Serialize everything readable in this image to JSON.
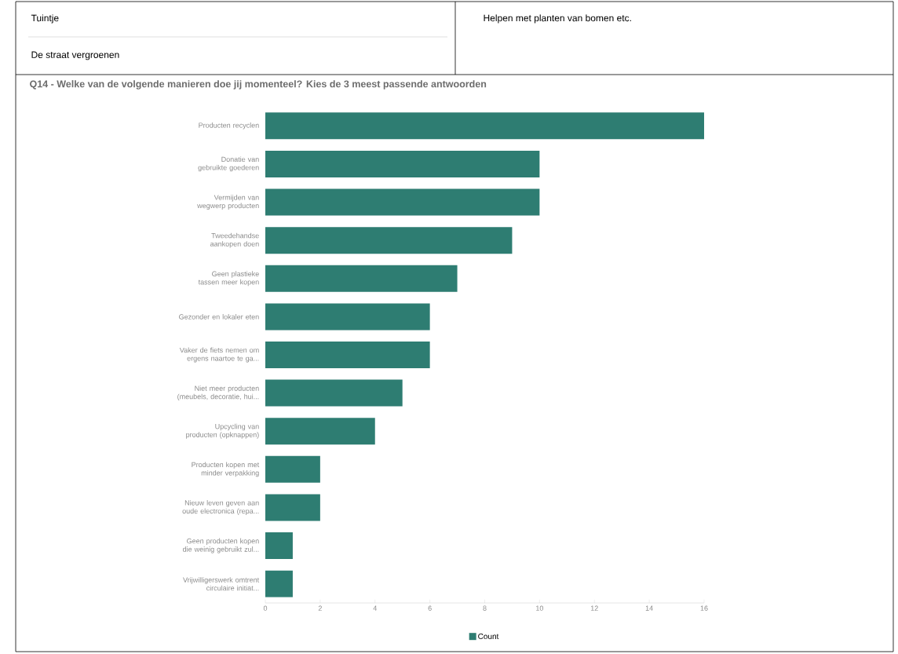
{
  "chart_data": {
    "type": "bar",
    "orientation": "horizontal",
    "title": "Q14 - Welke van de volgende manieren doe jij momenteel? Kies de 3 meest passende antwoorden",
    "annotations": [
      "Tuintje",
      "De straat vergroenen",
      "Helpen met planten van bomen etc."
    ],
    "categories": [
      "Producten recyclen",
      "Donatie van gebruikte goederen",
      "Vermijden van wegwerp producten",
      "Tweedehandse aankopen doen",
      "Geen plastieke tassen meer kopen",
      "Gezonder en lokaler eten",
      "Vaker de fiets nemen om ergens naartoe te ga...",
      "Niet meer producten (meubels, decoratie, hui...",
      "Upcycling van producten (opknappen)",
      "Producten kopen met minder verpakking",
      "Nieuw leven geven aan oude electronica (repa...",
      "Geen producten kopen die weinig gebruikt zul...",
      "Vrijwilligerswerk omtrent circulaire initiat..."
    ],
    "series": [
      {
        "name": "Count",
        "color": "#2e7d72",
        "values": [
          16,
          10,
          10,
          9,
          7,
          6,
          6,
          5,
          4,
          2,
          2,
          1,
          1
        ]
      }
    ],
    "xlim": [
      0,
      16
    ],
    "xticks": [
      0,
      2,
      4,
      6,
      8,
      10,
      12,
      14,
      16
    ],
    "legend": "bottom"
  }
}
